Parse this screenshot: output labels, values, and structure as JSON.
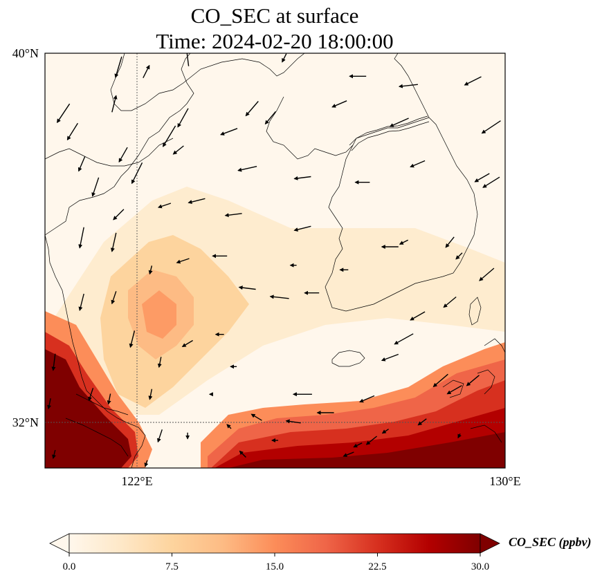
{
  "title_line1": "CO_SEC at surface",
  "title_line2": "Time: 2024-02-20 18:00:00",
  "map": {
    "lon_range": [
      120,
      130
    ],
    "lat_range": [
      31,
      40
    ],
    "lat_ticks": [
      {
        "value": 40,
        "label": "40°N"
      },
      {
        "value": 32,
        "label": "32°N"
      }
    ],
    "lon_ticks": [
      {
        "value": 122,
        "label": "122°E"
      },
      {
        "value": 130,
        "label": "130°E"
      }
    ],
    "gridlines": {
      "lon": [
        122
      ],
      "lat": [
        32
      ],
      "style": "dotted"
    }
  },
  "colorbar": {
    "label": "CO_SEC (ppbv)",
    "colormap": "OrRd",
    "range": [
      0.0,
      30.0
    ],
    "ticks": [
      "0.0",
      "7.5",
      "15.0",
      "22.5",
      "30.0"
    ],
    "extend": "both",
    "colors": [
      "#fff7ec",
      "#fee8c8",
      "#fdd49e",
      "#fdbb84",
      "#fc8d59",
      "#ef6548",
      "#d7301f",
      "#b30000",
      "#7f0000"
    ]
  },
  "wind_vectors": [
    {
      "lon": 121.6,
      "lat": 39.7,
      "u": -0.3,
      "v": -1.0
    },
    {
      "lon": 123.1,
      "lat": 39.9,
      "u": -0.1,
      "v": 0.8
    },
    {
      "lon": 122.2,
      "lat": 39.6,
      "u": 0.3,
      "v": 0.6
    },
    {
      "lon": 125.2,
      "lat": 39.9,
      "u": -0.2,
      "v": -0.4
    },
    {
      "lon": 126.8,
      "lat": 39.5,
      "u": -0.8,
      "v": 0.0
    },
    {
      "lon": 127.9,
      "lat": 39.3,
      "u": -0.9,
      "v": -0.1
    },
    {
      "lon": 129.3,
      "lat": 39.4,
      "u": -0.8,
      "v": -0.4
    },
    {
      "lon": 120.4,
      "lat": 38.7,
      "u": -0.6,
      "v": -0.9
    },
    {
      "lon": 120.6,
      "lat": 38.3,
      "u": -0.5,
      "v": -0.8
    },
    {
      "lon": 121.5,
      "lat": 38.9,
      "u": 0.2,
      "v": 0.8
    },
    {
      "lon": 123.0,
      "lat": 38.6,
      "u": -0.5,
      "v": -0.9
    },
    {
      "lon": 122.7,
      "lat": 38.2,
      "u": -0.6,
      "v": -1.0
    },
    {
      "lon": 124.5,
      "lat": 38.8,
      "u": -0.6,
      "v": -0.7
    },
    {
      "lon": 124.9,
      "lat": 38.6,
      "u": -0.5,
      "v": -0.6
    },
    {
      "lon": 126.4,
      "lat": 38.9,
      "u": -0.7,
      "v": -0.3
    },
    {
      "lon": 127.7,
      "lat": 38.5,
      "u": -0.9,
      "v": -0.4
    },
    {
      "lon": 129.7,
      "lat": 38.4,
      "u": -0.9,
      "v": -0.6
    },
    {
      "lon": 121.7,
      "lat": 37.8,
      "u": -0.4,
      "v": -0.7
    },
    {
      "lon": 122.0,
      "lat": 37.4,
      "u": -0.5,
      "v": -1.0
    },
    {
      "lon": 122.9,
      "lat": 37.9,
      "u": -0.5,
      "v": -0.4
    },
    {
      "lon": 120.8,
      "lat": 37.6,
      "u": -0.3,
      "v": -0.7
    },
    {
      "lon": 121.1,
      "lat": 37.1,
      "u": -0.3,
      "v": -0.9
    },
    {
      "lon": 124.0,
      "lat": 38.3,
      "u": -0.8,
      "v": -0.3
    },
    {
      "lon": 124.4,
      "lat": 37.5,
      "u": -0.9,
      "v": -0.2
    },
    {
      "lon": 125.6,
      "lat": 37.3,
      "u": -0.8,
      "v": -0.1
    },
    {
      "lon": 126.9,
      "lat": 37.2,
      "u": -0.7,
      "v": 0.0
    },
    {
      "lon": 128.1,
      "lat": 37.6,
      "u": -0.7,
      "v": -0.3
    },
    {
      "lon": 129.5,
      "lat": 37.3,
      "u": -0.7,
      "v": -0.4
    },
    {
      "lon": 129.7,
      "lat": 37.2,
      "u": -0.8,
      "v": -0.5
    },
    {
      "lon": 122.6,
      "lat": 36.7,
      "u": -0.6,
      "v": -0.2
    },
    {
      "lon": 123.3,
      "lat": 36.8,
      "u": -0.8,
      "v": -0.2
    },
    {
      "lon": 124.1,
      "lat": 36.5,
      "u": -0.8,
      "v": -0.1
    },
    {
      "lon": 121.6,
      "lat": 36.5,
      "u": -0.5,
      "v": -0.5
    },
    {
      "lon": 120.8,
      "lat": 36.0,
      "u": -0.2,
      "v": -1.0
    },
    {
      "lon": 121.5,
      "lat": 35.9,
      "u": -0.2,
      "v": -0.9
    },
    {
      "lon": 125.6,
      "lat": 36.2,
      "u": -0.8,
      "v": -0.2
    },
    {
      "lon": 127.5,
      "lat": 35.8,
      "u": -0.8,
      "v": 0.0
    },
    {
      "lon": 127.8,
      "lat": 35.9,
      "u": -0.4,
      "v": -0.2
    },
    {
      "lon": 128.8,
      "lat": 35.9,
      "u": -0.4,
      "v": -0.5
    },
    {
      "lon": 129.0,
      "lat": 35.6,
      "u": -0.3,
      "v": -0.3
    },
    {
      "lon": 122.3,
      "lat": 35.3,
      "u": -0.1,
      "v": -0.4
    },
    {
      "lon": 123.0,
      "lat": 35.5,
      "u": -0.6,
      "v": -0.2
    },
    {
      "lon": 123.8,
      "lat": 35.6,
      "u": -0.7,
      "v": 0.0
    },
    {
      "lon": 125.4,
      "lat": 35.4,
      "u": -0.3,
      "v": 0.0
    },
    {
      "lon": 126.5,
      "lat": 35.3,
      "u": -0.4,
      "v": 0.0
    },
    {
      "lon": 129.6,
      "lat": 35.2,
      "u": -0.7,
      "v": -0.6
    },
    {
      "lon": 120.8,
      "lat": 34.6,
      "u": -0.2,
      "v": -0.8
    },
    {
      "lon": 121.5,
      "lat": 34.7,
      "u": -0.2,
      "v": -0.6
    },
    {
      "lon": 124.4,
      "lat": 34.9,
      "u": -0.8,
      "v": 0.1
    },
    {
      "lon": 125.1,
      "lat": 34.7,
      "u": -0.9,
      "v": 0.1
    },
    {
      "lon": 125.8,
      "lat": 34.8,
      "u": -0.7,
      "v": 0.0
    },
    {
      "lon": 128.1,
      "lat": 34.3,
      "u": -0.7,
      "v": -0.4
    },
    {
      "lon": 128.8,
      "lat": 34.6,
      "u": -0.6,
      "v": -0.5
    },
    {
      "lon": 121.9,
      "lat": 33.8,
      "u": -0.2,
      "v": -0.8
    },
    {
      "lon": 123.1,
      "lat": 33.7,
      "u": -0.5,
      "v": -0.3
    },
    {
      "lon": 123.8,
      "lat": 33.9,
      "u": -0.4,
      "v": 0.0
    },
    {
      "lon": 127.8,
      "lat": 33.8,
      "u": -0.9,
      "v": -0.5
    },
    {
      "lon": 127.5,
      "lat": 33.4,
      "u": -0.8,
      "v": -0.3
    },
    {
      "lon": 122.5,
      "lat": 33.3,
      "u": -0.1,
      "v": -0.5
    },
    {
      "lon": 124.1,
      "lat": 33.2,
      "u": -0.3,
      "v": 0.0
    },
    {
      "lon": 128.6,
      "lat": 32.9,
      "u": -0.7,
      "v": -0.6
    },
    {
      "lon": 129.3,
      "lat": 32.9,
      "u": -0.6,
      "v": -0.5
    },
    {
      "lon": 128.9,
      "lat": 32.7,
      "u": -0.7,
      "v": -0.4
    },
    {
      "lon": 121.0,
      "lat": 32.6,
      "u": -0.2,
      "v": -0.6
    },
    {
      "lon": 121.4,
      "lat": 32.5,
      "u": -0.1,
      "v": -0.5
    },
    {
      "lon": 122.3,
      "lat": 32.6,
      "u": -0.1,
      "v": -0.5
    },
    {
      "lon": 123.6,
      "lat": 32.6,
      "u": -0.1,
      "v": 0.0
    },
    {
      "lon": 125.6,
      "lat": 32.6,
      "u": -0.9,
      "v": 0.0
    },
    {
      "lon": 127.0,
      "lat": 32.5,
      "u": -0.7,
      "v": -0.3
    },
    {
      "lon": 120.1,
      "lat": 32.4,
      "u": -0.1,
      "v": -0.5
    },
    {
      "lon": 126.1,
      "lat": 32.2,
      "u": -0.8,
      "v": 0.0
    },
    {
      "lon": 124.6,
      "lat": 32.1,
      "u": -0.5,
      "v": 0.3
    },
    {
      "lon": 125.4,
      "lat": 32.0,
      "u": -0.7,
      "v": 0.1
    },
    {
      "lon": 127.4,
      "lat": 31.8,
      "u": -0.3,
      "v": -0.2
    },
    {
      "lon": 128.2,
      "lat": 32.0,
      "u": -0.4,
      "v": -0.3
    },
    {
      "lon": 127.1,
      "lat": 31.6,
      "u": -0.5,
      "v": -0.4
    },
    {
      "lon": 126.8,
      "lat": 31.5,
      "u": -0.4,
      "v": -0.2
    },
    {
      "lon": 126.6,
      "lat": 31.3,
      "u": -0.5,
      "v": -0.2
    },
    {
      "lon": 125.0,
      "lat": 31.6,
      "u": -0.3,
      "v": 0.0
    },
    {
      "lon": 122.5,
      "lat": 31.7,
      "u": -0.2,
      "v": -0.6
    },
    {
      "lon": 123.1,
      "lat": 31.7,
      "u": 0.0,
      "v": -0.3
    },
    {
      "lon": 124.0,
      "lat": 31.9,
      "u": -0.2,
      "v": 0.2
    },
    {
      "lon": 124.3,
      "lat": 31.3,
      "u": -0.3,
      "v": 0.3
    },
    {
      "lon": 122.2,
      "lat": 31.1,
      "u": -0.1,
      "v": -0.3
    },
    {
      "lon": 120.2,
      "lat": 31.3,
      "u": -0.1,
      "v": -0.4
    },
    {
      "lon": 129.0,
      "lat": 31.7,
      "u": -0.1,
      "v": -0.2
    },
    {
      "lon": 120.2,
      "lat": 33.3,
      "u": -0.1,
      "v": -0.8
    }
  ]
}
